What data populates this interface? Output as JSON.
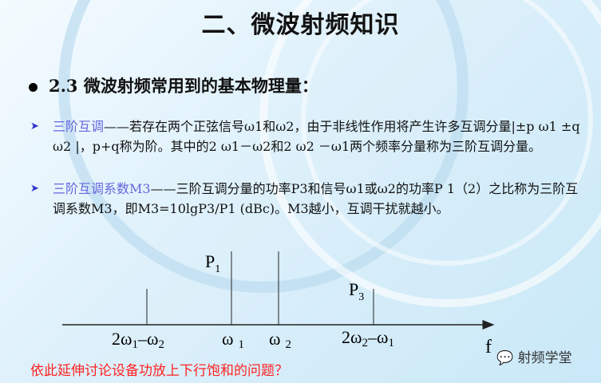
{
  "title": "二、微波射频知识",
  "subhead": "2.3  微波射频常用到的基本物理量：",
  "bullets": [
    {
      "term": "三阶互调",
      "text": "——若存在两个正弦信号ω1和ω2，由于非线性作用将产生许多互调分量|±p ω1 ±q ω2 |，p+q称为阶。其中的2 ω1－ω2和2 ω2 －ω1两个频率分量称为三阶互调分量。"
    },
    {
      "term": "三阶互调系数M3",
      "text": "——三阶互调分量的功率P3和信号ω1或ω2的功率P 1（2）之比称为三阶互调系数M3，即M3=10lgP3/P1 (dBc)。M3越小，互调干扰就越小。"
    }
  ],
  "diagram": {
    "axis_label": "f",
    "lines": [
      {
        "label": "2ω",
        "sub": "1",
        "rest": "–ω",
        "sub2": "2",
        "level": "low"
      },
      {
        "label": "ω",
        "sub": "1",
        "level": "high",
        "power": "P",
        "power_sub": "1"
      },
      {
        "label": "ω",
        "sub": "2",
        "level": "high"
      },
      {
        "label": "2ω",
        "sub": "2",
        "rest": "–ω",
        "sub2": "1",
        "level": "low",
        "power": "P",
        "power_sub": "3"
      }
    ]
  },
  "note": "依此延伸讨论设备功放上下行饱和的问题？",
  "watermark": "射频学堂"
}
